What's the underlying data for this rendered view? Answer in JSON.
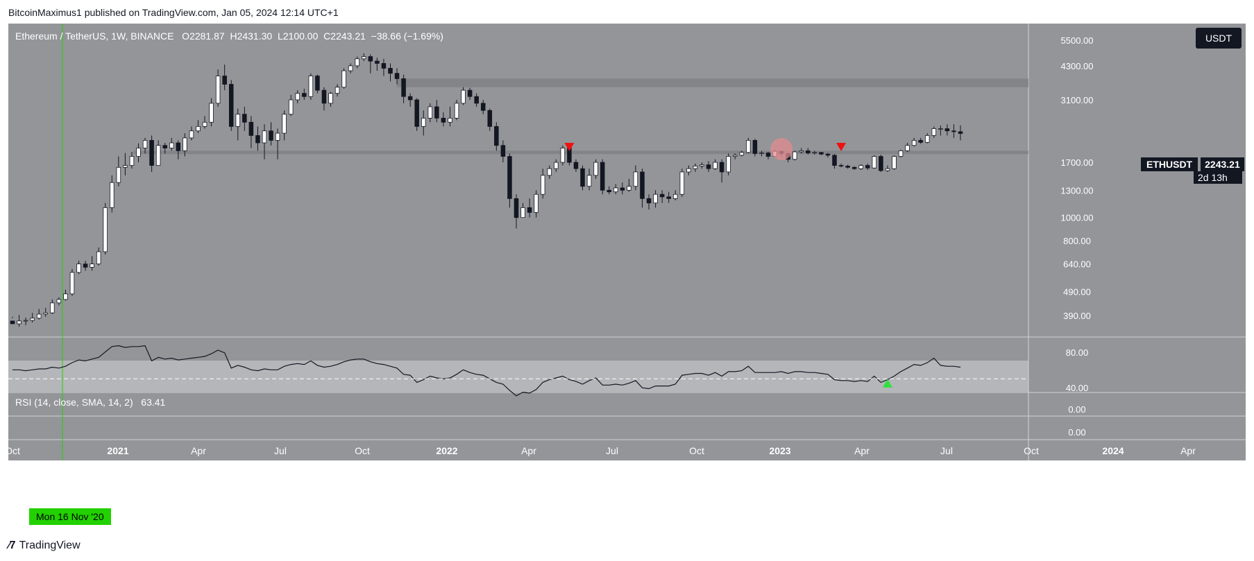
{
  "publish_line": "BitcoinMaximus1 published on TradingView.com, Jan 05, 2024 12:14 UTC+1",
  "footer_brand": "TradingView",
  "legend": {
    "pair": "Ethereum / TetherUS, 1W, BINANCE",
    "o_label": "O",
    "o_value": "2281.87",
    "h_label": "H",
    "h_value": "2431.30",
    "l_label": "L",
    "l_value": "2100.00",
    "c_label": "C",
    "c_value": "2243.21",
    "change": "−38.66 (−1.69%)"
  },
  "rsi_legend": {
    "label": "RSI (14, close, SMA, 14, 2)",
    "value": "63.41"
  },
  "currency_button": "USDT",
  "symbol_tag": {
    "name": "ETHUSDT",
    "price": "2243.21",
    "countdown": "2d 13h"
  },
  "crosshair_date": "Mon 16 Nov '20",
  "colors": {
    "background": "#939598",
    "rsi_band": "#b4b6b9",
    "up_candle": "#ffffff",
    "down_candle": "#131722",
    "resistance_zone": "#7c7f83",
    "marker_red": "#f01010",
    "marker_green": "#2ee23c",
    "crosshair": "#22d100",
    "circle": "#e28b8f"
  },
  "chart_data": [
    {
      "type": "candlestick",
      "title": "Ethereum / TetherUS, 1W, BINANCE",
      "scale": "log",
      "y_ticks": [
        "5500.00",
        "4300.00",
        "3100.00",
        "1700.00",
        "1300.00",
        "1000.00",
        "800.00",
        "640.00",
        "490.00",
        "390.00"
      ],
      "x_ticks": [
        "Oct",
        "2021",
        "Apr",
        "Jul",
        "Oct",
        "2022",
        "Apr",
        "Jul",
        "Oct",
        "2023",
        "Apr",
        "Jul",
        "Oct",
        "2024",
        "Apr"
      ],
      "series": [
        {
          "points": [
            [
              370,
              360,
              380,
              385
            ],
            [
              360,
              370,
              350,
              392
            ],
            [
              370,
              372,
              355,
              382
            ],
            [
              372,
              380,
              365,
              400
            ],
            [
              380,
              395,
              375,
              415
            ],
            [
              395,
              400,
              385,
              420
            ],
            [
              400,
              440,
              395,
              455
            ],
            [
              440,
              455,
              430,
              465
            ],
            [
              455,
              480,
              450,
              500
            ],
            [
              480,
              590,
              470,
              610
            ],
            [
              590,
              640,
              580,
              660
            ],
            [
              640,
              620,
              600,
              660
            ],
            [
              620,
              640,
              600,
              690
            ],
            [
              640,
              720,
              630,
              750
            ],
            [
              720,
              1100,
              700,
              1150
            ],
            [
              1100,
              1400,
              1050,
              1500
            ],
            [
              1400,
              1620,
              1350,
              1800
            ],
            [
              1620,
              1650,
              1500,
              1860
            ],
            [
              1650,
              1800,
              1600,
              1880
            ],
            [
              1800,
              1950,
              1700,
              2040
            ],
            [
              1950,
              2100,
              1850,
              2150
            ],
            [
              2100,
              1650,
              1550,
              2200
            ],
            [
              1650,
              2000,
              1700,
              2100
            ],
            [
              2000,
              1950,
              1850,
              2050
            ],
            [
              1950,
              2050,
              1900,
              2150
            ],
            [
              2050,
              1900,
              1750,
              2100
            ],
            [
              1900,
              2150,
              1800,
              2250
            ],
            [
              2150,
              2300,
              2100,
              2400
            ],
            [
              2300,
              2400,
              2250,
              2550
            ],
            [
              2400,
              2500,
              2350,
              2650
            ],
            [
              2500,
              3000,
              2400,
              3150
            ],
            [
              3000,
              3900,
              2900,
              4150
            ],
            [
              3900,
              3600,
              3400,
              4350
            ],
            [
              3600,
              2400,
              2300,
              3750
            ],
            [
              2400,
              2700,
              2100,
              2850
            ],
            [
              2700,
              2500,
              2300,
              2900
            ],
            [
              2500,
              2200,
              1950,
              2650
            ],
            [
              2200,
              2050,
              1900,
              2400
            ],
            [
              2050,
              2300,
              1750,
              2450
            ],
            [
              2300,
              2100,
              2000,
              2500
            ],
            [
              2100,
              2250,
              1750,
              2350
            ],
            [
              2250,
              2700,
              2100,
              2800
            ],
            [
              2700,
              3100,
              2650,
              3250
            ],
            [
              3100,
              3300,
              3000,
              3400
            ],
            [
              3300,
              3200,
              3100,
              3450
            ],
            [
              3200,
              3900,
              3100,
              4000
            ],
            [
              3900,
              3400,
              3300,
              3950
            ],
            [
              3400,
              3000,
              2800,
              3500
            ],
            [
              3000,
              3300,
              2900,
              3350
            ],
            [
              3300,
              3500,
              3200,
              3600
            ],
            [
              3500,
              4100,
              3450,
              4200
            ],
            [
              4100,
              4300,
              4000,
              4400
            ],
            [
              4300,
              4600,
              4200,
              4700
            ],
            [
              4600,
              4700,
              4500,
              4850
            ],
            [
              4700,
              4500,
              4000,
              4800
            ],
            [
              4500,
              4400,
              4100,
              4650
            ],
            [
              4400,
              4200,
              3900,
              4600
            ],
            [
              4200,
              4000,
              3700,
              4400
            ],
            [
              4000,
              3800,
              3600,
              4200
            ],
            [
              3800,
              3200,
              3000,
              3950
            ],
            [
              3200,
              3100,
              2900,
              3300
            ],
            [
              3100,
              2400,
              2300,
              3150
            ],
            [
              2400,
              2600,
              2200,
              2800
            ],
            [
              2600,
              2900,
              2500,
              3000
            ],
            [
              2900,
              2600,
              2500,
              3100
            ],
            [
              2600,
              2500,
              2400,
              2750
            ],
            [
              2500,
              2600,
              2400,
              2900
            ],
            [
              2600,
              3000,
              2550,
              3100
            ],
            [
              3000,
              3400,
              2950,
              3500
            ],
            [
              3400,
              3200,
              3100,
              3480
            ],
            [
              3200,
              3000,
              2900,
              3300
            ],
            [
              3000,
              2800,
              2700,
              3100
            ],
            [
              2800,
              2400,
              2300,
              2850
            ],
            [
              2400,
              2000,
              1900,
              2500
            ],
            [
              2000,
              1800,
              1700,
              2100
            ],
            [
              1800,
              1200,
              1100,
              1850
            ],
            [
              1200,
              1000,
              900,
              1250
            ],
            [
              1000,
              1100,
              1000,
              1150
            ],
            [
              1100,
              1050,
              1000,
              1200
            ],
            [
              1050,
              1250,
              1000,
              1300
            ],
            [
              1250,
              1500,
              1200,
              1600
            ],
            [
              1500,
              1600,
              1450,
              1650
            ],
            [
              1600,
              1700,
              1550,
              1750
            ],
            [
              1700,
              1950,
              1650,
              2000
            ],
            [
              1950,
              1700,
              1650,
              2000
            ],
            [
              1700,
              1600,
              1550,
              1750
            ],
            [
              1600,
              1350,
              1300,
              1650
            ],
            [
              1350,
              1500,
              1300,
              1600
            ],
            [
              1500,
              1700,
              1450,
              1750
            ],
            [
              1700,
              1300,
              1250,
              1750
            ],
            [
              1300,
              1280,
              1250,
              1350
            ],
            [
              1280,
              1330,
              1250,
              1380
            ],
            [
              1330,
              1300,
              1250,
              1400
            ],
            [
              1300,
              1350,
              1280,
              1450
            ],
            [
              1350,
              1550,
              1300,
              1650
            ],
            [
              1550,
              1200,
              1100,
              1600
            ],
            [
              1200,
              1150,
              1080,
              1250
            ],
            [
              1150,
              1250,
              1100,
              1300
            ],
            [
              1250,
              1220,
              1150,
              1300
            ],
            [
              1220,
              1200,
              1150,
              1280
            ],
            [
              1200,
              1250,
              1180,
              1300
            ],
            [
              1250,
              1550,
              1220,
              1600
            ],
            [
              1550,
              1600,
              1500,
              1650
            ],
            [
              1600,
              1640,
              1550,
              1680
            ],
            [
              1640,
              1660,
              1600,
              1700
            ],
            [
              1660,
              1600,
              1550,
              1720
            ],
            [
              1600,
              1700,
              1580,
              1750
            ],
            [
              1700,
              1550,
              1400,
              1750
            ],
            [
              1550,
              1800,
              1500,
              1850
            ],
            [
              1800,
              1820,
              1750,
              1850
            ],
            [
              1820,
              1870,
              1800,
              1900
            ],
            [
              1870,
              2100,
              1850,
              2150
            ],
            [
              2100,
              1850,
              1800,
              2130
            ],
            [
              1850,
              1860,
              1800,
              1900
            ],
            [
              1860,
              1800,
              1750,
              1880
            ],
            [
              1800,
              1890,
              1780,
              1920
            ],
            [
              1890,
              1850,
              1800,
              1900
            ],
            [
              1850,
              1750,
              1700,
              1870
            ],
            [
              1750,
              1880,
              1730,
              1900
            ],
            [
              1880,
              1900,
              1850,
              1950
            ],
            [
              1900,
              1860,
              1830,
              1950
            ],
            [
              1860,
              1870,
              1830,
              1900
            ],
            [
              1870,
              1840,
              1820,
              1880
            ],
            [
              1840,
              1820,
              1780,
              1860
            ],
            [
              1820,
              1650,
              1600,
              1840
            ],
            [
              1650,
              1640,
              1620,
              1680
            ],
            [
              1640,
              1620,
              1600,
              1660
            ],
            [
              1620,
              1600,
              1580,
              1640
            ],
            [
              1600,
              1650,
              1580,
              1670
            ],
            [
              1650,
              1610,
              1580,
              1680
            ],
            [
              1610,
              1800,
              1600,
              1820
            ],
            [
              1800,
              1570,
              1550,
              1830
            ],
            [
              1570,
              1600,
              1550,
              1650
            ],
            [
              1600,
              1800,
              1580,
              1820
            ],
            [
              1800,
              1900,
              1780,
              1920
            ],
            [
              1900,
              2000,
              1880,
              2050
            ],
            [
              2000,
              2100,
              1980,
              2150
            ],
            [
              2100,
              2060,
              2030,
              2150
            ],
            [
              2060,
              2200,
              2040,
              2250
            ],
            [
              2200,
              2350,
              2150,
              2400
            ],
            [
              2350,
              2350,
              2200,
              2420
            ],
            [
              2350,
              2300,
              2200,
              2450
            ],
            [
              2300,
              2282,
              2150,
              2450
            ],
            [
              2282,
              2243,
              2100,
              2431
            ]
          ]
        }
      ],
      "annotations": [
        "resistance zone ~1850-1900",
        "resistance zone ~3500-3800",
        "bearish markers",
        "circle marker"
      ]
    },
    {
      "type": "line",
      "title": "RSI (14, close, SMA, 14, 2)",
      "y_ticks": [
        "80.00",
        "40.00",
        "0.00",
        "0.00"
      ],
      "series": [
        {
          "name": "RSI",
          "values": [
            60,
            60,
            59,
            60,
            61,
            61,
            63,
            62,
            64,
            68,
            71,
            70,
            72,
            74,
            80,
            86,
            87,
            85,
            86,
            86,
            87,
            70,
            74,
            72,
            73,
            71,
            72,
            73,
            74,
            75,
            78,
            82,
            79,
            62,
            65,
            63,
            60,
            59,
            61,
            60,
            60,
            64,
            66,
            67,
            66,
            70,
            65,
            63,
            64,
            66,
            69,
            71,
            72,
            72,
            69,
            67,
            66,
            64,
            62,
            55,
            54,
            46,
            49,
            53,
            51,
            50,
            51,
            55,
            60,
            57,
            55,
            54,
            50,
            46,
            44,
            37,
            31,
            35,
            34,
            38,
            46,
            49,
            51,
            53,
            49,
            47,
            44,
            48,
            51,
            43,
            43,
            44,
            43,
            45,
            48,
            40,
            39,
            42,
            42,
            42,
            44,
            54,
            55,
            56,
            56,
            54,
            57,
            53,
            58,
            58,
            59,
            64,
            57,
            57,
            57,
            57,
            58,
            56,
            58,
            58,
            57,
            57,
            56,
            55,
            49,
            48,
            48,
            47,
            48,
            47,
            53,
            46,
            49,
            53,
            58,
            62,
            66,
            65,
            68,
            73,
            65,
            64,
            64,
            63
          ]
        }
      ]
    }
  ]
}
